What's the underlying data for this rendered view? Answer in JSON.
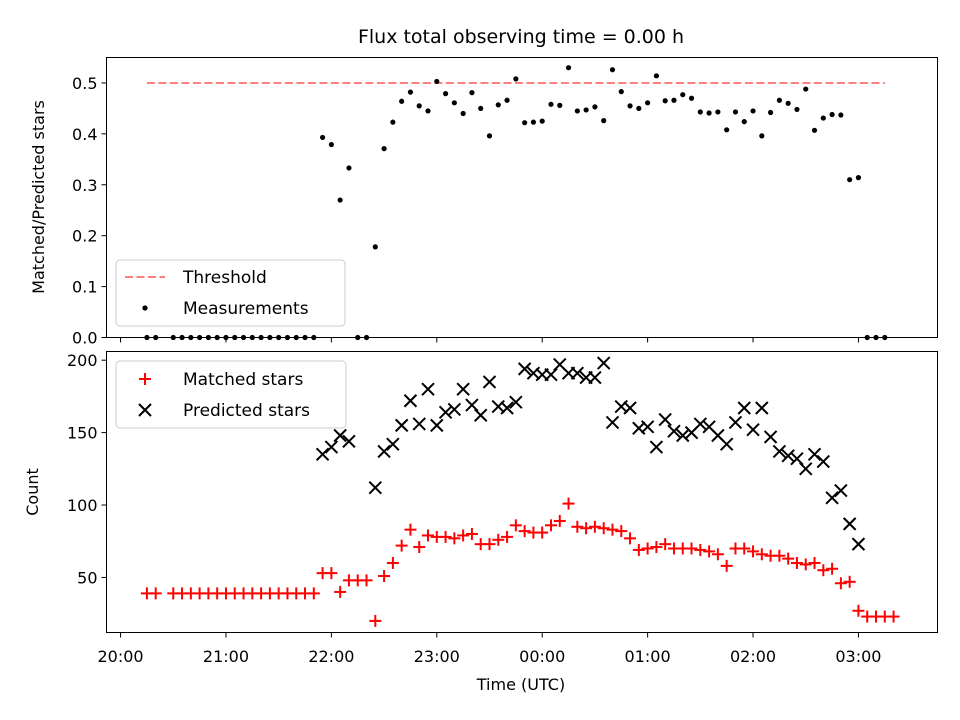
{
  "chart_data": [
    {
      "type": "scatter",
      "title": "Flux total observing time = 0.00 h",
      "ylabel": "Matched/Predicted stars",
      "xlabel": "",
      "ylim": [
        0,
        0.55
      ],
      "yticks": [
        0,
        0.1,
        0.2,
        0.3,
        0.4,
        0.5
      ],
      "ytick_labels": [
        "0.0",
        "0.1",
        "0.2",
        "0.3",
        "0.4",
        "0.5"
      ],
      "xlim_hours_utc": [
        "19:52",
        "03:45"
      ],
      "grid": false,
      "legend_position": "lower-left",
      "threshold": {
        "name": "Threshold",
        "value": 0.5,
        "x_start": "20:15",
        "x_end": "03:15",
        "color": "#ff7f7f"
      },
      "series": [
        {
          "name": "Measurements",
          "color": "#000000",
          "marker": "dot",
          "points": [
            [
              "20:15",
              0
            ],
            [
              "20:20",
              0
            ],
            [
              "20:30",
              0
            ],
            [
              "20:35",
              0
            ],
            [
              "20:40",
              0
            ],
            [
              "20:45",
              0
            ],
            [
              "20:50",
              0
            ],
            [
              "20:55",
              0
            ],
            [
              "21:00",
              0
            ],
            [
              "21:05",
              0
            ],
            [
              "21:10",
              0
            ],
            [
              "21:15",
              0
            ],
            [
              "21:20",
              0
            ],
            [
              "21:25",
              0
            ],
            [
              "21:30",
              0
            ],
            [
              "21:35",
              0
            ],
            [
              "21:40",
              0
            ],
            [
              "21:45",
              0
            ],
            [
              "21:50",
              0
            ],
            [
              "21:55",
              0.393
            ],
            [
              "22:00",
              0.379
            ],
            [
              "22:05",
              0.27
            ],
            [
              "22:10",
              0.333
            ],
            [
              "22:15",
              0
            ],
            [
              "22:20",
              0
            ],
            [
              "22:25",
              0.178
            ],
            [
              "22:30",
              0.371
            ],
            [
              "22:35",
              0.423
            ],
            [
              "22:40",
              0.464
            ],
            [
              "22:45",
              0.482
            ],
            [
              "22:50",
              0.455
            ],
            [
              "22:55",
              0.445
            ],
            [
              "23:00",
              0.503
            ],
            [
              "23:05",
              0.479
            ],
            [
              "23:10",
              0.461
            ],
            [
              "23:15",
              0.44
            ],
            [
              "23:20",
              0.481
            ],
            [
              "23:25",
              0.45
            ],
            [
              "23:30",
              0.396
            ],
            [
              "23:35",
              0.457
            ],
            [
              "23:40",
              0.466
            ],
            [
              "23:45",
              0.508
            ],
            [
              "23:50",
              0.422
            ],
            [
              "23:55",
              0.423
            ],
            [
              "00:00",
              0.425
            ],
            [
              "00:05",
              0.458
            ],
            [
              "00:10",
              0.456
            ],
            [
              "00:15",
              0.53
            ],
            [
              "00:20",
              0.445
            ],
            [
              "00:25",
              0.447
            ],
            [
              "00:30",
              0.453
            ],
            [
              "00:35",
              0.426
            ],
            [
              "00:40",
              0.526
            ],
            [
              "00:45",
              0.483
            ],
            [
              "00:50",
              0.455
            ],
            [
              "00:55",
              0.45
            ],
            [
              "01:00",
              0.461
            ],
            [
              "01:05",
              0.514
            ],
            [
              "01:10",
              0.465
            ],
            [
              "01:15",
              0.466
            ],
            [
              "01:20",
              0.477
            ],
            [
              "01:25",
              0.47
            ],
            [
              "01:30",
              0.443
            ],
            [
              "01:35",
              0.441
            ],
            [
              "01:40",
              0.443
            ],
            [
              "01:45",
              0.408
            ],
            [
              "01:50",
              0.443
            ],
            [
              "01:55",
              0.424
            ],
            [
              "02:00",
              0.445
            ],
            [
              "02:05",
              0.396
            ],
            [
              "02:10",
              0.442
            ],
            [
              "02:15",
              0.466
            ],
            [
              "02:20",
              0.46
            ],
            [
              "02:25",
              0.448
            ],
            [
              "02:30",
              0.488
            ],
            [
              "02:35",
              0.407
            ],
            [
              "02:40",
              0.431
            ],
            [
              "02:45",
              0.438
            ],
            [
              "02:50",
              0.437
            ],
            [
              "02:55",
              0.31
            ],
            [
              "03:00",
              0.314
            ],
            [
              "03:05",
              0
            ],
            [
              "03:10",
              0
            ],
            [
              "03:15",
              0
            ]
          ]
        }
      ]
    },
    {
      "type": "scatter",
      "title": "",
      "xlabel": "Time (UTC)",
      "ylabel": "Count",
      "ylim": [
        12,
        206
      ],
      "yticks": [
        50,
        100,
        150,
        200
      ],
      "ytick_labels": [
        "50",
        "100",
        "150",
        "200"
      ],
      "xticks": [
        "20:00",
        "21:00",
        "22:00",
        "23:00",
        "00:00",
        "01:00",
        "02:00",
        "03:00"
      ],
      "grid": false,
      "legend_position": "upper-left",
      "series": [
        {
          "name": "Matched stars",
          "color": "#ff0000",
          "marker": "plus",
          "points": [
            [
              "20:15",
              39
            ],
            [
              "20:20",
              39
            ],
            [
              "20:30",
              39
            ],
            [
              "20:35",
              39
            ],
            [
              "20:40",
              39
            ],
            [
              "20:45",
              39
            ],
            [
              "20:50",
              39
            ],
            [
              "20:55",
              39
            ],
            [
              "21:00",
              39
            ],
            [
              "21:05",
              39
            ],
            [
              "21:10",
              39
            ],
            [
              "21:15",
              39
            ],
            [
              "21:20",
              39
            ],
            [
              "21:25",
              39
            ],
            [
              "21:30",
              39
            ],
            [
              "21:35",
              39
            ],
            [
              "21:40",
              39
            ],
            [
              "21:45",
              39
            ],
            [
              "21:50",
              39
            ],
            [
              "21:55",
              53
            ],
            [
              "22:00",
              53
            ],
            [
              "22:05",
              40
            ],
            [
              "22:10",
              48
            ],
            [
              "22:15",
              48
            ],
            [
              "22:20",
              48
            ],
            [
              "22:25",
              20
            ],
            [
              "22:30",
              51
            ],
            [
              "22:35",
              60
            ],
            [
              "22:40",
              72
            ],
            [
              "22:45",
              83
            ],
            [
              "22:50",
              71
            ],
            [
              "22:55",
              79
            ],
            [
              "23:00",
              78
            ],
            [
              "23:05",
              78
            ],
            [
              "23:10",
              77
            ],
            [
              "23:15",
              79
            ],
            [
              "23:20",
              80
            ],
            [
              "23:25",
              73
            ],
            [
              "23:30",
              73
            ],
            [
              "23:35",
              76
            ],
            [
              "23:40",
              78
            ],
            [
              "23:45",
              86
            ],
            [
              "23:50",
              82
            ],
            [
              "23:55",
              81
            ],
            [
              "00:00",
              81
            ],
            [
              "00:05",
              86
            ],
            [
              "00:10",
              89
            ],
            [
              "00:15",
              101
            ],
            [
              "00:20",
              85
            ],
            [
              "00:25",
              84
            ],
            [
              "00:30",
              85
            ],
            [
              "00:35",
              84
            ],
            [
              "00:40",
              83
            ],
            [
              "00:45",
              82
            ],
            [
              "00:50",
              77
            ],
            [
              "00:55",
              69
            ],
            [
              "01:00",
              70
            ],
            [
              "01:05",
              71
            ],
            [
              "01:10",
              73
            ],
            [
              "01:15",
              70
            ],
            [
              "01:20",
              70
            ],
            [
              "01:25",
              70
            ],
            [
              "01:30",
              69
            ],
            [
              "01:35",
              68
            ],
            [
              "01:40",
              66
            ],
            [
              "01:45",
              58
            ],
            [
              "01:50",
              70
            ],
            [
              "01:55",
              70
            ],
            [
              "02:00",
              68
            ],
            [
              "02:05",
              66
            ],
            [
              "02:10",
              65
            ],
            [
              "02:15",
              65
            ],
            [
              "02:20",
              63
            ],
            [
              "02:25",
              60
            ],
            [
              "02:30",
              59
            ],
            [
              "02:35",
              60
            ],
            [
              "02:40",
              55
            ],
            [
              "02:45",
              56
            ],
            [
              "02:50",
              46
            ],
            [
              "02:55",
              47
            ],
            [
              "03:00",
              27
            ],
            [
              "03:05",
              23
            ],
            [
              "03:10",
              23
            ],
            [
              "03:15",
              23
            ],
            [
              "03:20",
              23
            ]
          ]
        },
        {
          "name": "Predicted stars",
          "color": "#000000",
          "marker": "x",
          "points": [
            [
              "21:55",
              135
            ],
            [
              "22:00",
              140
            ],
            [
              "22:05",
              148
            ],
            [
              "22:10",
              144
            ],
            [
              "22:25",
              112
            ],
            [
              "22:30",
              137
            ],
            [
              "22:35",
              142
            ],
            [
              "22:40",
              155
            ],
            [
              "22:45",
              172
            ],
            [
              "22:50",
              156
            ],
            [
              "22:55",
              180
            ],
            [
              "23:00",
              155
            ],
            [
              "23:05",
              164
            ],
            [
              "23:10",
              166
            ],
            [
              "23:15",
              180
            ],
            [
              "23:20",
              169
            ],
            [
              "23:25",
              162
            ],
            [
              "23:30",
              185
            ],
            [
              "23:35",
              168
            ],
            [
              "23:40",
              167
            ],
            [
              "23:45",
              171
            ],
            [
              "23:50",
              194
            ],
            [
              "23:55",
              191
            ],
            [
              "00:00",
              190
            ],
            [
              "00:05",
              190
            ],
            [
              "00:10",
              197
            ],
            [
              "00:15",
              191
            ],
            [
              "00:20",
              191
            ],
            [
              "00:25",
              188
            ],
            [
              "00:30",
              188
            ],
            [
              "00:35",
              198
            ],
            [
              "00:40",
              157
            ],
            [
              "00:45",
              168
            ],
            [
              "00:50",
              167
            ],
            [
              "00:55",
              153
            ],
            [
              "01:00",
              154
            ],
            [
              "01:05",
              140
            ],
            [
              "01:10",
              159
            ],
            [
              "01:15",
              151
            ],
            [
              "01:20",
              148
            ],
            [
              "01:25",
              150
            ],
            [
              "01:30",
              156
            ],
            [
              "01:35",
              154
            ],
            [
              "01:40",
              148
            ],
            [
              "01:45",
              142
            ],
            [
              "01:50",
              157
            ],
            [
              "01:55",
              167
            ],
            [
              "02:00",
              152
            ],
            [
              "02:05",
              167
            ],
            [
              "02:10",
              147
            ],
            [
              "02:15",
              137
            ],
            [
              "02:20",
              134
            ],
            [
              "02:25",
              132
            ],
            [
              "02:30",
              125
            ],
            [
              "02:35",
              135
            ],
            [
              "02:40",
              130
            ],
            [
              "02:45",
              105
            ],
            [
              "02:50",
              110
            ],
            [
              "02:55",
              87
            ],
            [
              "03:00",
              73
            ]
          ]
        }
      ]
    }
  ]
}
